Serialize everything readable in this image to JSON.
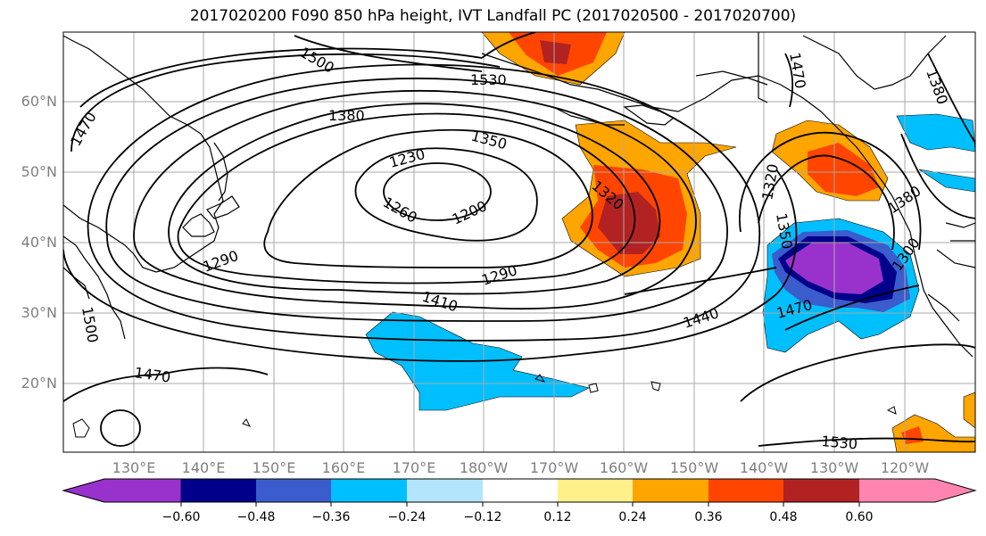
{
  "title": "2017020200 F090 850 hPa height, IVT Landfall PC (2017020500 - 2017020700)",
  "lat_labels": [
    "60°N",
    "50°N",
    "40°N",
    "30°N",
    "20°N"
  ],
  "lon_labels": [
    "130°E",
    "140°E",
    "150°E",
    "160°E",
    "170°E",
    "180°W",
    "170°W",
    "160°W",
    "150°W",
    "140°W",
    "130°W",
    "120°W"
  ],
  "colorbar": {
    "ticks": [
      "−0.60",
      "−0.48",
      "−0.36",
      "−0.24",
      "−0.12",
      "0.12",
      "0.24",
      "0.36",
      "0.48",
      "0.60"
    ],
    "colors": [
      "#9932cc",
      "#00008b",
      "#3a5ccc",
      "#00bfff",
      "#b3e5fc",
      "#ffffff",
      "#fff08a",
      "#ffa500",
      "#ff4500",
      "#b22222",
      "#ff85b0"
    ]
  },
  "contour_labels": [
    "1500",
    "1530",
    "1380",
    "1350",
    "1230",
    "1200",
    "1260",
    "1290",
    "1320",
    "1410",
    "1440",
    "1470",
    "1470",
    "1350",
    "1320",
    "1380",
    "1300",
    "1290",
    "1500",
    "1470",
    "1530",
    "1470",
    "1380"
  ]
}
